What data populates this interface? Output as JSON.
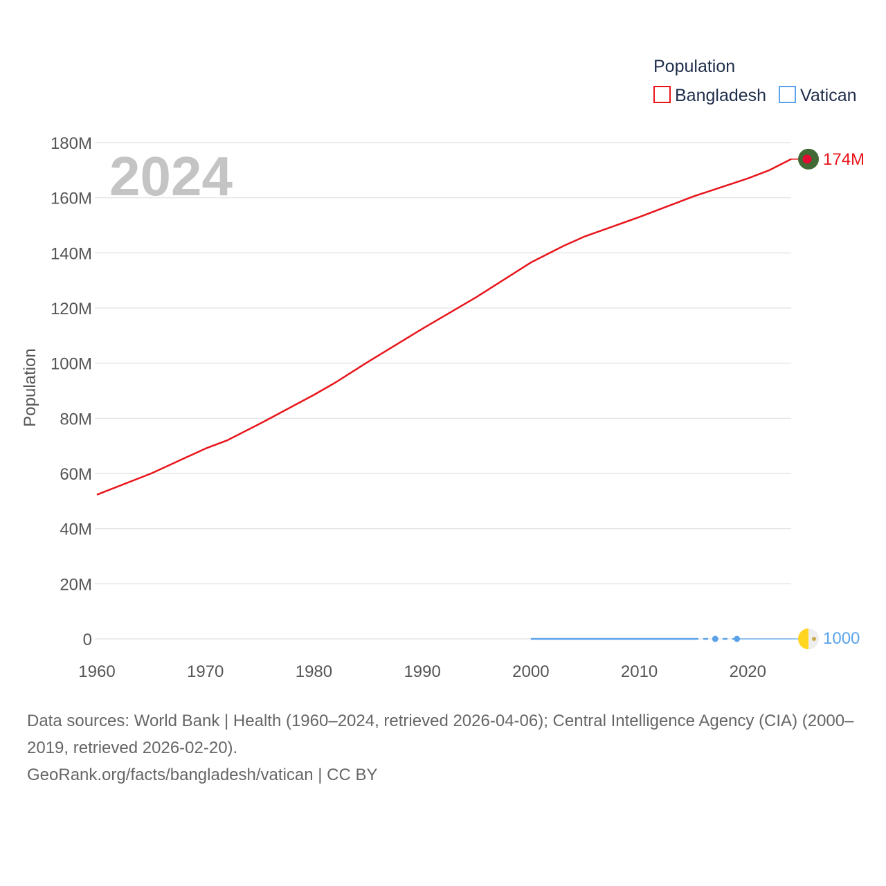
{
  "chart_data": {
    "type": "line",
    "title": "",
    "watermark_year": "2024",
    "ylabel": "Population",
    "xlabel": "",
    "xlim": [
      1960,
      2024
    ],
    "ylim": [
      0,
      180000000
    ],
    "x_ticks": [
      1960,
      1970,
      1980,
      1990,
      2000,
      2010,
      2020
    ],
    "y_ticks": [
      0,
      20000000,
      40000000,
      60000000,
      80000000,
      100000000,
      120000000,
      140000000,
      160000000,
      180000000
    ],
    "y_tick_labels": [
      "0",
      "20M",
      "40M",
      "60M",
      "80M",
      "100M",
      "120M",
      "140M",
      "160M",
      "180M"
    ],
    "legend": {
      "title": "Population",
      "position": "top-right"
    },
    "series": [
      {
        "name": "Bangladesh",
        "color": "#e8151b",
        "end_label": "174M",
        "end_marker_colors": [
          "#416a35",
          "#e30b31"
        ],
        "x": [
          1960,
          1965,
          1970,
          1972,
          1975,
          1980,
          1982,
          1985,
          1990,
          1995,
          2000,
          2003,
          2005,
          2010,
          2015,
          2020,
          2022,
          2024
        ],
        "values": [
          52300000,
          60000000,
          69000000,
          72000000,
          78000000,
          88500000,
          93000000,
          100500000,
          112500000,
          124000000,
          136500000,
          142500000,
          146000000,
          153000000,
          160500000,
          167000000,
          170000000,
          174000000
        ]
      },
      {
        "name": "Vatican",
        "color": "#5aa3ea",
        "end_label": "1000",
        "end_marker_colors": [
          "#ffd520",
          "#eeeeee"
        ],
        "x": [
          2000,
          2015,
          2017,
          2019,
          2024
        ],
        "values": [
          1000,
          1000,
          1000,
          1000,
          1000
        ],
        "points": [
          2017,
          2019
        ]
      }
    ]
  },
  "footer": {
    "sources": "Data sources: World Bank | Health (1960–2024, retrieved 2026-04-06); Central Intelligence Agency (CIA) (2000–2019, retrieved 2026-02-20).",
    "attribution": "GeoRank.org/facts/bangladesh/vatican | CC BY"
  }
}
